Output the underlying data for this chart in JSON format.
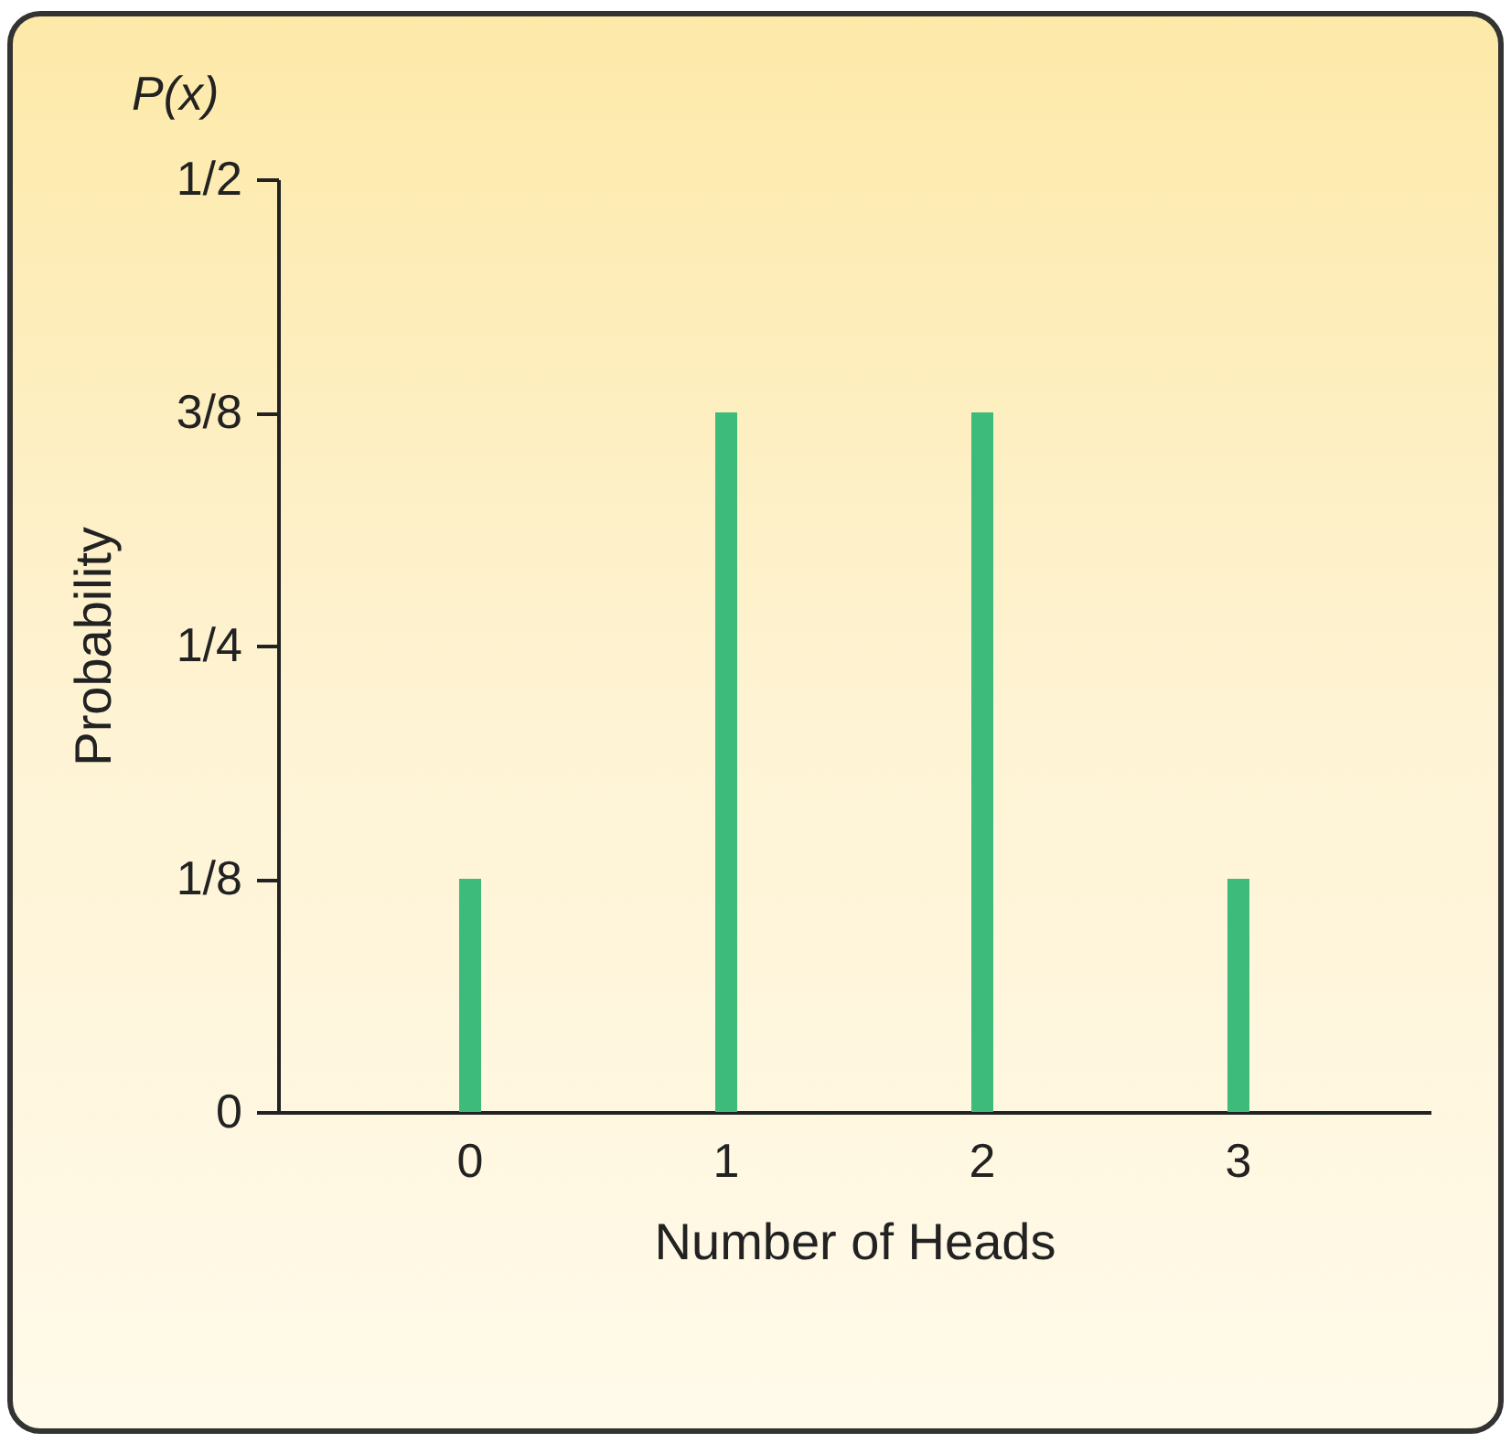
{
  "chart_data": {
    "type": "bar",
    "title": "P(x)",
    "xlabel": "Number of Heads",
    "ylabel": "Probability",
    "categories": [
      "0",
      "1",
      "2",
      "3"
    ],
    "values": [
      0.125,
      0.375,
      0.375,
      0.125
    ],
    "color": "#3dbb7a",
    "ylim": [
      0,
      0.5
    ],
    "yticks": [
      0,
      {
        "value": 0.125,
        "label": "1/8"
      },
      {
        "value": 0.25,
        "label": "1/4"
      },
      {
        "value": 0.375,
        "label": "3/8"
      },
      {
        "value": 0.5,
        "label": "1/2"
      }
    ],
    "grid": false
  }
}
